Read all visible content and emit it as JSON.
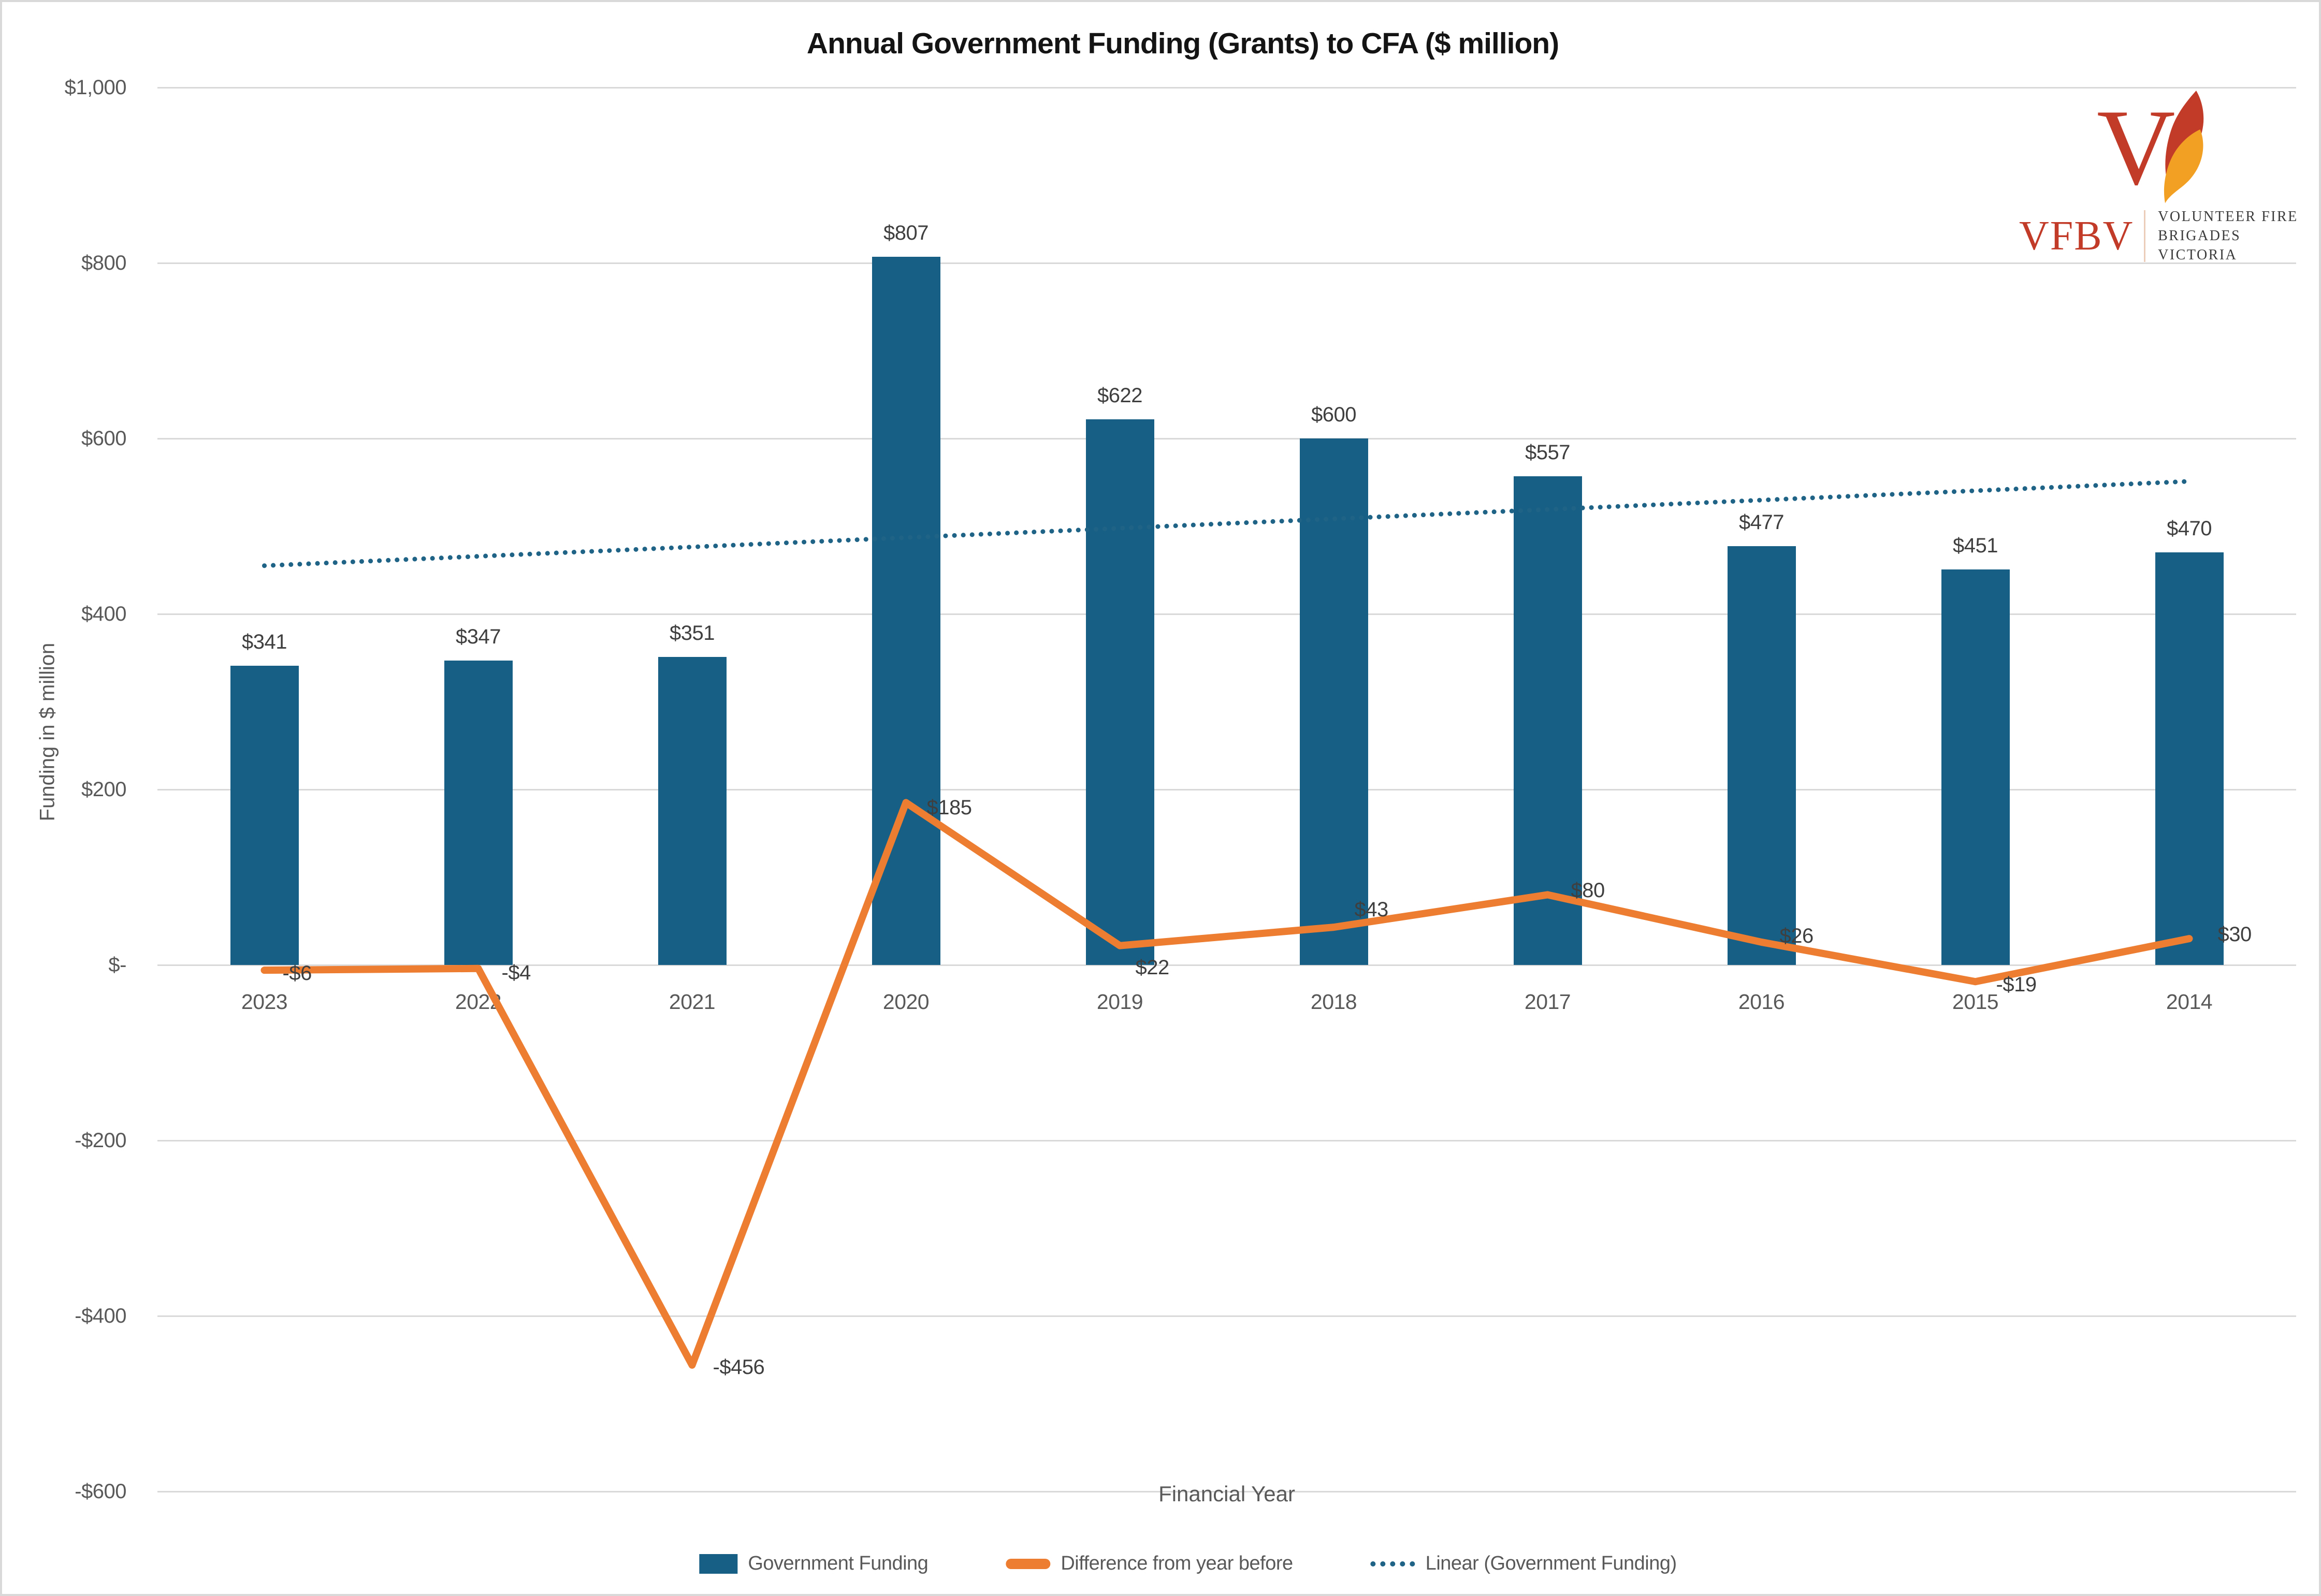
{
  "title": "Annual Government Funding (Grants) to CFA ($ million)",
  "logo": {
    "abbr": "VFBV",
    "line1": "VOLUNTEER FIRE",
    "line2": "BRIGADES VICTORIA",
    "red": "#c23b28",
    "flame_orange": "#f2a024"
  },
  "chart_data": {
    "type": "bar",
    "title": "Annual Government Funding (Grants) to CFA ($ million)",
    "xlabel": "Financial Year",
    "ylabel": "Funding in $ million",
    "ylim": [
      -600,
      1000
    ],
    "ytick_step": 200,
    "grid": "horizontal",
    "legend_position": "bottom",
    "categories": [
      "2023",
      "2022",
      "2021",
      "2020",
      "2019",
      "2018",
      "2017",
      "2016",
      "2015",
      "2014"
    ],
    "yticks": {
      "values": [
        1000,
        800,
        600,
        400,
        200,
        0,
        -200,
        -400,
        -600
      ],
      "labels": [
        "$1,000",
        "$800",
        "$600",
        "$400",
        "$200",
        "$-",
        "-$200",
        "-$400",
        "-$600"
      ]
    },
    "series": [
      {
        "name": "Government Funding",
        "type": "bar",
        "color": "#175f84",
        "values": [
          341,
          347,
          351,
          807,
          622,
          600,
          557,
          477,
          451,
          470
        ],
        "labels": [
          "$341",
          "$347",
          "$351",
          "$807",
          "$622",
          "$600",
          "$557",
          "$477",
          "$451",
          "$470"
        ]
      },
      {
        "name": "Difference from year before",
        "type": "line",
        "color": "#ed7d31",
        "values": [
          -6,
          -4,
          -456,
          185,
          22,
          43,
          80,
          26,
          -19,
          30
        ],
        "labels": [
          "-$6",
          "-$4",
          "-$456",
          "$185",
          "$22",
          "$43",
          "$80",
          "$26",
          "-$19",
          "$30"
        ],
        "label_offsets": [
          {
            "dx": 35,
            "dy": 6
          },
          {
            "dx": 45,
            "dy": 8
          },
          {
            "dx": 40,
            "dy": 4
          },
          {
            "dx": 40,
            "dy": 10
          },
          {
            "dx": 30,
            "dy": 42
          },
          {
            "dx": 40,
            "dy": -34
          },
          {
            "dx": 45,
            "dy": -8
          },
          {
            "dx": 35,
            "dy": -12
          },
          {
            "dx": 40,
            "dy": 6
          },
          {
            "dx": 55,
            "dy": -8
          }
        ]
      },
      {
        "name": "Linear (Government Funding)",
        "type": "trendline",
        "style": "dotted",
        "color": "#1f6386",
        "value_first": 455,
        "value_last": 551
      }
    ]
  },
  "legend": [
    {
      "label": "Government Funding",
      "marker": "rect"
    },
    {
      "label": "Difference from year before",
      "marker": "line"
    },
    {
      "label": "Linear (Government Funding)",
      "marker": "dots"
    }
  ],
  "colors": {
    "gridline": "#d9d9d9",
    "border": "#d9d9d9",
    "tick_text": "#595959",
    "label_text": "#3f3f3f"
  }
}
